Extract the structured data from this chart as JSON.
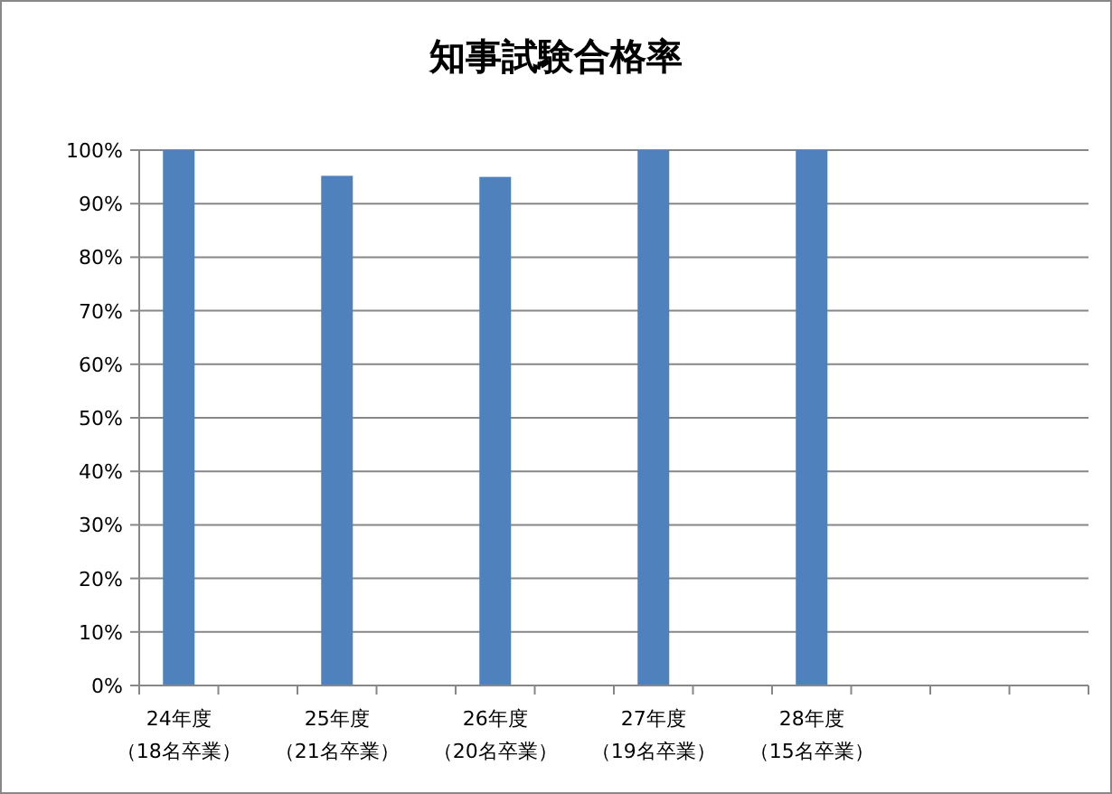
{
  "chart_data": {
    "type": "bar",
    "title": "知事試験合格率",
    "categories": [
      "24年度（18名卒業）",
      null,
      "25年度（21名卒業）",
      null,
      "26年度（20名卒業）",
      null,
      "27年度（19名卒業）",
      null,
      "28年度（15名卒業）",
      null,
      null,
      null
    ],
    "values": [
      100,
      null,
      95.2,
      null,
      95,
      null,
      100,
      null,
      100,
      null,
      null,
      null
    ],
    "color": "#4f81bd",
    "ylim": [
      0,
      100
    ],
    "yticks": [
      {
        "value": 0,
        "label": "0%"
      },
      {
        "value": 10,
        "label": "10%"
      },
      {
        "value": 20,
        "label": "20%"
      },
      {
        "value": 30,
        "label": "30%"
      },
      {
        "value": 40,
        "label": "40%"
      },
      {
        "value": 50,
        "label": "50%"
      },
      {
        "value": 60,
        "label": "60%"
      },
      {
        "value": 70,
        "label": "70%"
      },
      {
        "value": 80,
        "label": "80%"
      },
      {
        "value": 90,
        "label": "90%"
      },
      {
        "value": 100,
        "label": "100%"
      }
    ],
    "grid": "y"
  }
}
